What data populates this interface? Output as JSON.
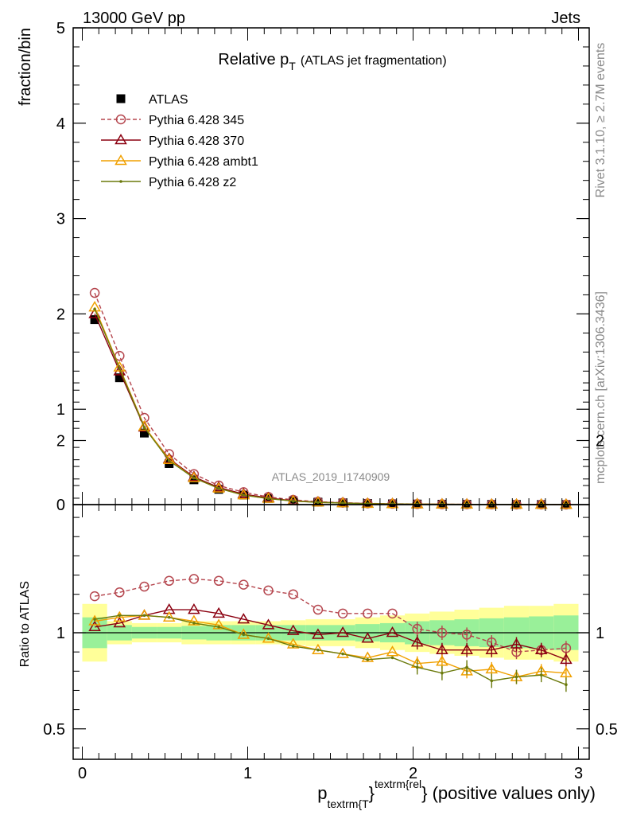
{
  "header": {
    "left": "13000 GeV pp",
    "right": "Jets"
  },
  "side_labels": {
    "rivet": "Rivet 3.1.10, ≥ 2.7M events",
    "mcplots": "mcplots.cern.ch [arXiv:1306.3436]"
  },
  "chart_data": [
    {
      "type": "line",
      "title_main": "Relative p",
      "title_sub": "T",
      "title_note": "(ATLAS jet fragmentation)",
      "watermark": "ATLAS_2019_I1740909",
      "ylabel": "fraction/bin",
      "ylim": [
        0,
        5
      ],
      "xlim": [
        -0.05,
        3.05
      ],
      "y_ticks": [
        {
          "v": 0,
          "label": "0"
        },
        {
          "v": 1,
          "label": "1"
        },
        {
          "v": 2,
          "label": "2"
        },
        {
          "v": 3,
          "label": "3"
        },
        {
          "v": 4,
          "label": "4"
        },
        {
          "v": 5,
          "label": "5"
        }
      ],
      "legend_position": "top-left",
      "x": [
        0.075,
        0.225,
        0.375,
        0.525,
        0.675,
        0.825,
        0.975,
        1.125,
        1.275,
        1.425,
        1.575,
        1.725,
        1.875,
        2.025,
        2.175,
        2.325,
        2.475,
        2.625,
        2.775,
        2.925
      ],
      "series": [
        {
          "name": "ATLAS",
          "color": "#000000",
          "marker": "square",
          "values": [
            1.94,
            1.33,
            0.75,
            0.43,
            0.26,
            0.16,
            0.1,
            0.065,
            0.04,
            0.026,
            0.018,
            0.012,
            0.008,
            0.006,
            0.004,
            0.003,
            0.002,
            0.0015,
            0.001,
            0.0008
          ]
        },
        {
          "name": "Pythia 6.428 345",
          "color": "#b5464e",
          "marker": "circle",
          "dashed": true,
          "values": [
            2.22,
            1.56,
            0.91,
            0.53,
            0.32,
            0.2,
            0.13,
            0.08,
            0.05,
            0.03,
            0.02,
            0.013,
            0.009,
            0.006,
            0.004,
            0.003,
            0.002,
            0.0014,
            0.001,
            0.0007
          ]
        },
        {
          "name": "Pythia 6.428 370",
          "color": "#8b0010",
          "marker": "triangle",
          "values": [
            2.0,
            1.4,
            0.81,
            0.48,
            0.29,
            0.18,
            0.11,
            0.07,
            0.04,
            0.026,
            0.018,
            0.011,
            0.008,
            0.006,
            0.004,
            0.003,
            0.002,
            0.0014,
            0.001,
            0.0007
          ]
        },
        {
          "name": "Pythia 6.428 ambt1",
          "color": "#f0a000",
          "marker": "triangle",
          "values": [
            2.07,
            1.44,
            0.82,
            0.47,
            0.28,
            0.17,
            0.1,
            0.063,
            0.038,
            0.024,
            0.016,
            0.01,
            0.007,
            0.005,
            0.0035,
            0.0024,
            0.0016,
            0.0012,
            0.0008,
            0.0006
          ]
        },
        {
          "name": "Pythia 6.428 z2",
          "color": "#6b7a0c",
          "marker": "dot",
          "values": [
            2.05,
            1.43,
            0.81,
            0.46,
            0.28,
            0.17,
            0.1,
            0.063,
            0.037,
            0.023,
            0.016,
            0.01,
            0.007,
            0.005,
            0.0033,
            0.0023,
            0.0015,
            0.0011,
            0.0008,
            0.0006
          ]
        }
      ]
    },
    {
      "type": "line",
      "ylabel": "Ratio to ATLAS",
      "ylim": [
        0.35,
        2.35
      ],
      "xlim": [
        -0.05,
        3.05
      ],
      "y_ticks": [
        {
          "v": 0.5,
          "label": "0.5"
        },
        {
          "v": 1,
          "label": "1"
        },
        {
          "v": 2,
          "label": "2"
        }
      ],
      "x_ticks": [
        {
          "v": 0,
          "label": "0"
        },
        {
          "v": 1,
          "label": "1"
        },
        {
          "v": 2,
          "label": "2"
        },
        {
          "v": 3,
          "label": "3"
        }
      ],
      "xlabel": {
        "p": "p",
        "sub": "textrm{T",
        "brace": "}",
        "sup": "textrm{rel",
        "rest": "} (positive values only)"
      },
      "x": [
        0.075,
        0.225,
        0.375,
        0.525,
        0.675,
        0.825,
        0.975,
        1.125,
        1.275,
        1.425,
        1.575,
        1.725,
        1.875,
        2.025,
        2.175,
        2.325,
        2.475,
        2.625,
        2.775,
        2.925
      ],
      "bin_edges": [
        0,
        0.15,
        0.3,
        0.45,
        0.6,
        0.75,
        0.9,
        1.05,
        1.2,
        1.35,
        1.5,
        1.65,
        1.8,
        1.95,
        2.1,
        2.25,
        2.4,
        2.55,
        2.7,
        2.85,
        3.0
      ],
      "band_inner_halfwidth": [
        0.08,
        0.04,
        0.03,
        0.03,
        0.035,
        0.04,
        0.04,
        0.04,
        0.04,
        0.04,
        0.04,
        0.045,
        0.05,
        0.06,
        0.065,
        0.07,
        0.075,
        0.08,
        0.085,
        0.09
      ],
      "band_outer_halfwidth": [
        0.15,
        0.06,
        0.05,
        0.05,
        0.06,
        0.06,
        0.06,
        0.06,
        0.065,
        0.07,
        0.07,
        0.08,
        0.09,
        0.1,
        0.11,
        0.12,
        0.13,
        0.14,
        0.14,
        0.15
      ],
      "series": [
        {
          "name": "Pythia 6.428 345",
          "color": "#b5464e",
          "marker": "circle",
          "dashed": true,
          "values": [
            1.19,
            1.21,
            1.24,
            1.27,
            1.28,
            1.27,
            1.25,
            1.22,
            1.2,
            1.12,
            1.1,
            1.1,
            1.1,
            1.02,
            1.0,
            0.99,
            0.95,
            0.9,
            0.91,
            0.92
          ]
        },
        {
          "name": "Pythia 6.428 370",
          "color": "#8b0010",
          "marker": "triangle",
          "values": [
            1.03,
            1.05,
            1.09,
            1.12,
            1.12,
            1.1,
            1.07,
            1.04,
            1.01,
            0.99,
            1.0,
            0.97,
            1.0,
            0.95,
            0.91,
            0.91,
            0.91,
            0.94,
            0.91,
            0.86
          ]
        },
        {
          "name": "Pythia 6.428 ambt1",
          "color": "#f0a000",
          "marker": "triangle",
          "values": [
            1.06,
            1.08,
            1.09,
            1.08,
            1.06,
            1.04,
            0.99,
            0.97,
            0.94,
            0.91,
            0.89,
            0.87,
            0.9,
            0.84,
            0.85,
            0.8,
            0.81,
            0.77,
            0.8,
            0.79
          ]
        },
        {
          "name": "Pythia 6.428 z2",
          "color": "#6b7a0c",
          "marker": "dot",
          "values": [
            1.07,
            1.09,
            1.09,
            1.08,
            1.05,
            1.03,
            0.99,
            0.97,
            0.93,
            0.91,
            0.89,
            0.86,
            0.87,
            0.82,
            0.79,
            0.82,
            0.75,
            0.77,
            0.78,
            0.73
          ]
        }
      ]
    }
  ]
}
